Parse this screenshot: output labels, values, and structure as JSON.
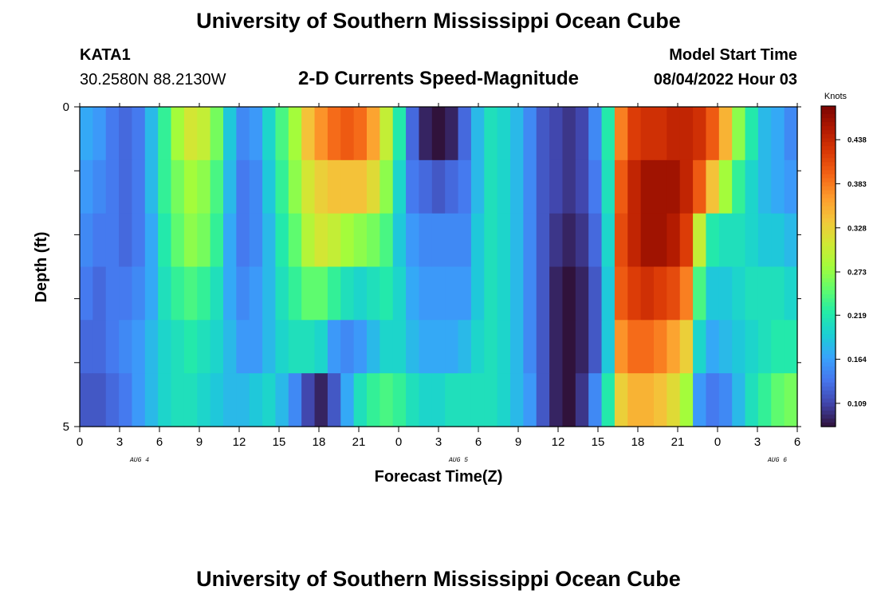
{
  "header": {
    "title": "University of Southern Mississippi Ocean Cube",
    "station_id": "KATA1",
    "station_coords": "30.2580N  88.2130W",
    "chart_subtitle": "2-D Currents Speed-Magnitude",
    "model_start_label": "Model Start Time",
    "model_start_value": "08/04/2022 Hour 03"
  },
  "footer": {
    "title_repeat": "University of Southern Mississippi Ocean Cube"
  },
  "chart_data": {
    "type": "heatmap",
    "title": "2-D Currents Speed-Magnitude",
    "xlabel": "Forecast Time(Z)",
    "ylabel": "Depth (ft)",
    "x_hours_since_start": [
      0,
      1,
      2,
      3,
      4,
      5,
      6,
      7,
      8,
      9,
      10,
      11,
      12,
      13,
      14,
      15,
      16,
      17,
      18,
      19,
      20,
      21,
      22,
      23,
      24,
      25,
      26,
      27,
      28,
      29,
      30,
      31,
      32,
      33,
      34,
      35,
      36,
      37,
      38,
      39,
      40,
      41,
      42,
      43,
      44,
      45,
      46,
      47,
      48,
      49,
      50,
      51,
      52,
      53,
      54
    ],
    "x_tick_labels": [
      "0",
      "3",
      "6",
      "9",
      "12",
      "15",
      "18",
      "21",
      "0",
      "3",
      "6",
      "9",
      "12",
      "15",
      "18",
      "21",
      "0",
      "3",
      "6"
    ],
    "x_date_labels": [
      {
        "text": "AUG 4",
        "at_tick": 1
      },
      {
        "text": "AUG 5",
        "at_tick": 9
      },
      {
        "text": "AUG 6",
        "at_tick": 17
      }
    ],
    "y_depth_ft": [
      0,
      1,
      2,
      3,
      4,
      5
    ],
    "y_tick_labels": [
      "0",
      "5"
    ],
    "y_range": [
      0,
      5
    ],
    "colorbar": {
      "label": "Knots",
      "range": [
        0.08,
        0.48
      ],
      "tick_values": [
        0.109,
        0.164,
        0.219,
        0.273,
        0.328,
        0.383,
        0.438
      ],
      "tick_labels": [
        "0.109",
        "0.164",
        "0.219",
        "0.273",
        "0.328",
        "0.383",
        "0.438"
      ],
      "colors": [
        "#30123b",
        "#4145ab",
        "#4675ed",
        "#39a2fc",
        "#1bcfd4",
        "#24eca6",
        "#61fc6c",
        "#a4fc3b",
        "#d1e834",
        "#f3c63a",
        "#fe9b2d",
        "#f36315",
        "#d93806",
        "#b11901",
        "#7a0402"
      ]
    },
    "values_knots": [
      [
        0.17,
        0.16,
        0.14,
        0.13,
        0.14,
        0.18,
        0.23,
        0.28,
        0.31,
        0.3,
        0.26,
        0.19,
        0.15,
        0.16,
        0.2,
        0.24,
        0.28,
        0.34,
        0.37,
        0.39,
        0.4,
        0.39,
        0.36,
        0.3,
        0.22,
        0.13,
        0.09,
        0.08,
        0.09,
        0.13,
        0.18,
        0.21,
        0.2,
        0.18,
        0.15,
        0.12,
        0.11,
        0.1,
        0.11,
        0.15,
        0.22,
        0.38,
        0.42,
        0.43,
        0.43,
        0.44,
        0.44,
        0.43,
        0.4,
        0.35,
        0.27,
        0.22,
        0.18,
        0.17,
        0.15
      ],
      [
        0.16,
        0.15,
        0.14,
        0.13,
        0.14,
        0.18,
        0.23,
        0.26,
        0.28,
        0.27,
        0.24,
        0.18,
        0.14,
        0.15,
        0.19,
        0.23,
        0.27,
        0.31,
        0.33,
        0.34,
        0.34,
        0.34,
        0.32,
        0.27,
        0.2,
        0.14,
        0.13,
        0.12,
        0.13,
        0.14,
        0.18,
        0.21,
        0.2,
        0.18,
        0.15,
        0.12,
        0.11,
        0.1,
        0.11,
        0.14,
        0.21,
        0.4,
        0.44,
        0.46,
        0.46,
        0.46,
        0.44,
        0.4,
        0.34,
        0.28,
        0.23,
        0.2,
        0.18,
        0.17,
        0.16
      ],
      [
        0.15,
        0.14,
        0.14,
        0.13,
        0.14,
        0.17,
        0.22,
        0.25,
        0.27,
        0.26,
        0.23,
        0.17,
        0.14,
        0.15,
        0.18,
        0.22,
        0.25,
        0.29,
        0.31,
        0.3,
        0.28,
        0.27,
        0.26,
        0.24,
        0.19,
        0.16,
        0.15,
        0.15,
        0.15,
        0.15,
        0.19,
        0.21,
        0.2,
        0.18,
        0.15,
        0.12,
        0.1,
        0.09,
        0.1,
        0.13,
        0.2,
        0.41,
        0.44,
        0.46,
        0.46,
        0.45,
        0.42,
        0.3,
        0.22,
        0.21,
        0.21,
        0.2,
        0.19,
        0.19,
        0.18
      ],
      [
        0.14,
        0.13,
        0.14,
        0.14,
        0.15,
        0.17,
        0.21,
        0.23,
        0.24,
        0.23,
        0.21,
        0.17,
        0.15,
        0.16,
        0.18,
        0.21,
        0.23,
        0.25,
        0.25,
        0.23,
        0.21,
        0.2,
        0.21,
        0.22,
        0.2,
        0.17,
        0.16,
        0.16,
        0.16,
        0.16,
        0.19,
        0.21,
        0.2,
        0.18,
        0.15,
        0.12,
        0.09,
        0.08,
        0.09,
        0.12,
        0.19,
        0.4,
        0.42,
        0.43,
        0.42,
        0.41,
        0.38,
        0.24,
        0.19,
        0.19,
        0.2,
        0.21,
        0.21,
        0.21,
        0.2
      ],
      [
        0.13,
        0.13,
        0.14,
        0.15,
        0.16,
        0.18,
        0.2,
        0.21,
        0.22,
        0.21,
        0.2,
        0.18,
        0.16,
        0.16,
        0.18,
        0.2,
        0.21,
        0.21,
        0.2,
        0.16,
        0.15,
        0.16,
        0.18,
        0.2,
        0.2,
        0.18,
        0.17,
        0.17,
        0.17,
        0.18,
        0.2,
        0.21,
        0.2,
        0.18,
        0.15,
        0.12,
        0.09,
        0.08,
        0.09,
        0.12,
        0.19,
        0.37,
        0.39,
        0.39,
        0.38,
        0.36,
        0.33,
        0.2,
        0.17,
        0.18,
        0.19,
        0.2,
        0.21,
        0.22,
        0.22
      ],
      [
        0.12,
        0.12,
        0.13,
        0.14,
        0.16,
        0.18,
        0.2,
        0.21,
        0.21,
        0.2,
        0.19,
        0.18,
        0.18,
        0.19,
        0.2,
        0.18,
        0.15,
        0.11,
        0.09,
        0.12,
        0.17,
        0.21,
        0.23,
        0.24,
        0.23,
        0.21,
        0.2,
        0.2,
        0.21,
        0.21,
        0.21,
        0.21,
        0.2,
        0.18,
        0.16,
        0.12,
        0.09,
        0.07,
        0.1,
        0.15,
        0.22,
        0.33,
        0.35,
        0.35,
        0.34,
        0.32,
        0.28,
        0.16,
        0.14,
        0.15,
        0.18,
        0.21,
        0.23,
        0.25,
        0.26
      ]
    ]
  }
}
